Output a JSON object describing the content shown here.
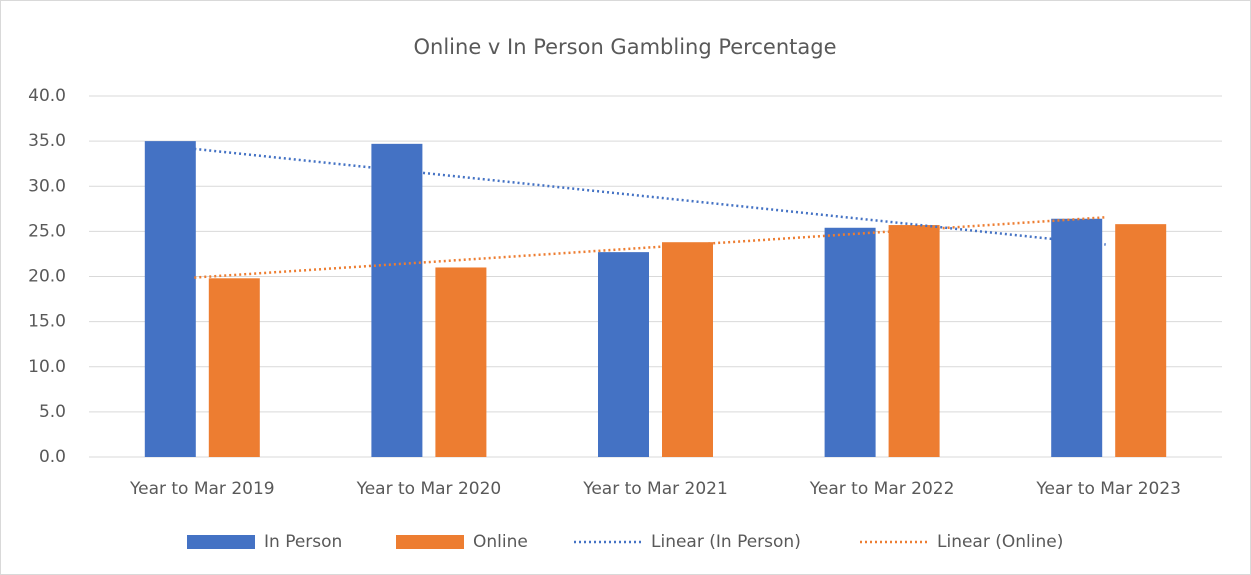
{
  "chart_data": {
    "type": "bar",
    "title": "Online v In Person Gambling Percentage",
    "categories": [
      "Year to Mar 2019",
      "Year to Mar 2020",
      "Year to Mar 2021",
      "Year to Mar 2022",
      "Year to Mar 2023"
    ],
    "series": [
      {
        "name": "In Person",
        "color": "#4472c4",
        "values": [
          35.0,
          34.7,
          22.7,
          25.4,
          26.4
        ]
      },
      {
        "name": "Online",
        "color": "#ed7d31",
        "values": [
          19.8,
          21.0,
          23.8,
          25.7,
          25.8
        ]
      }
    ],
    "trendlines": [
      {
        "name": "Linear (In Person)",
        "series": 0,
        "fit": "linear",
        "color": "#4472c4"
      },
      {
        "name": "Linear (Online)",
        "series": 1,
        "fit": "linear",
        "color": "#ed7d31"
      }
    ],
    "ylim": [
      0,
      40
    ],
    "yticks": [
      {
        "value": 0,
        "label": "0.0"
      },
      {
        "value": 5,
        "label": "5.0"
      },
      {
        "value": 10,
        "label": "10.0"
      },
      {
        "value": 15,
        "label": "15.0"
      },
      {
        "value": 20,
        "label": "20.0"
      },
      {
        "value": 25,
        "label": "25.0"
      },
      {
        "value": 30,
        "label": "30.0"
      },
      {
        "value": 35,
        "label": "35.0"
      },
      {
        "value": 40,
        "label": "40.0"
      }
    ],
    "grid": true,
    "legend": "bottom"
  }
}
